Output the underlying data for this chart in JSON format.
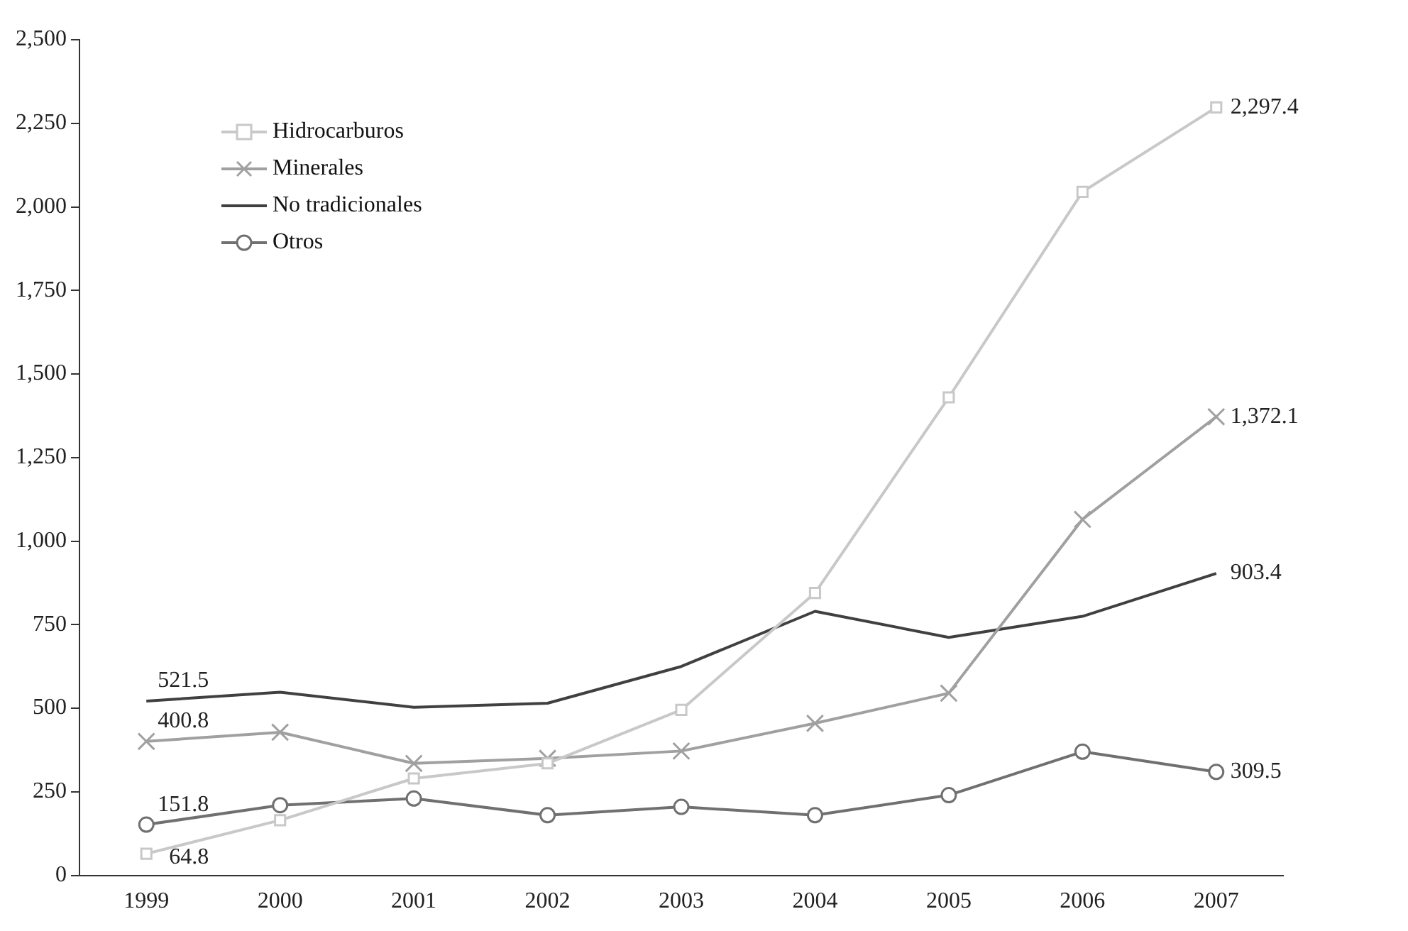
{
  "chart_data": {
    "type": "line",
    "categories": [
      "1999",
      "2000",
      "2001",
      "2002",
      "2003",
      "2004",
      "2005",
      "2006",
      "2007"
    ],
    "series": [
      {
        "name": "Hidrocarburos",
        "color": "#c8c8c8",
        "marker": "square",
        "values": [
          64.8,
          165,
          290,
          335,
          495,
          845,
          1430,
          2045,
          2297.4
        ],
        "value_labels": [
          "64.8",
          null,
          null,
          null,
          null,
          null,
          null,
          null,
          "2,297.4"
        ]
      },
      {
        "name": "Minerales",
        "color": "#a0a0a0",
        "marker": "cross",
        "values": [
          400.8,
          428,
          335,
          350,
          372,
          455,
          545,
          1065,
          1372.1
        ],
        "value_labels": [
          "400.8",
          null,
          null,
          null,
          null,
          null,
          null,
          null,
          "1,372.1"
        ]
      },
      {
        "name": "No tradicionales",
        "color": "#404040",
        "marker": "none",
        "values": [
          521.5,
          548,
          503,
          515,
          625,
          790,
          712,
          775,
          903.4
        ],
        "value_labels": [
          "521.5",
          null,
          null,
          null,
          null,
          null,
          null,
          null,
          "903.4"
        ]
      },
      {
        "name": "Otros",
        "color": "#707070",
        "marker": "circle",
        "values": [
          151.8,
          210,
          230,
          180,
          205,
          180,
          240,
          370,
          309.5
        ],
        "value_labels": [
          "151.8",
          null,
          null,
          null,
          null,
          null,
          null,
          null,
          "309.5"
        ]
      }
    ],
    "ylim": [
      0,
      2500
    ],
    "yticks": [
      {
        "value": 0,
        "label": "0"
      },
      {
        "value": 250,
        "label": "250"
      },
      {
        "value": 500,
        "label": "500"
      },
      {
        "value": 750,
        "label": "750"
      },
      {
        "value": 1000,
        "label": "1,000"
      },
      {
        "value": 1250,
        "label": "1,250"
      },
      {
        "value": 1500,
        "label": "1,500"
      },
      {
        "value": 1750,
        "label": "1,750"
      },
      {
        "value": 2000,
        "label": "2,000"
      },
      {
        "value": 2250,
        "label": "2,250"
      },
      {
        "value": 2500,
        "label": "2,500"
      }
    ],
    "grid": false,
    "legend": "top left"
  }
}
